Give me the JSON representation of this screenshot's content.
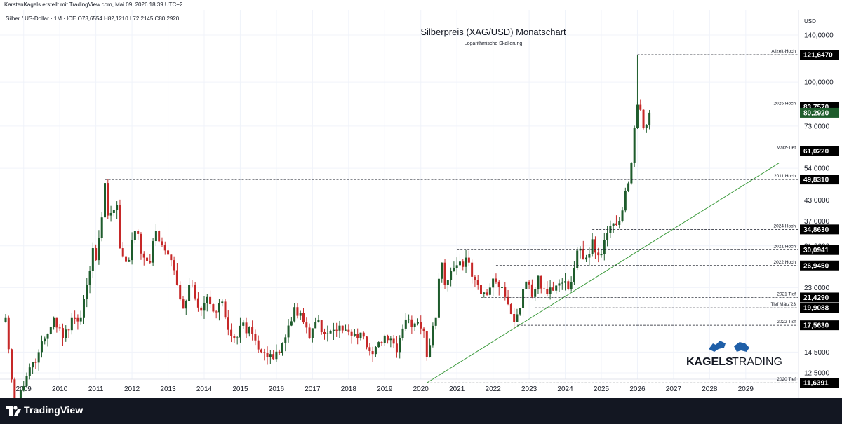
{
  "header": {
    "attribution": "KarstenKagels erstellt mit TradingView.com, Mai 09, 2026 18:39 UTC+2"
  },
  "footer": {
    "brand": "TradingView"
  },
  "chart_data": {
    "type": "candlestick",
    "symbol_line": "Silber / US-Dollar · 1M · ICE  O73,6554  H82,1210  L72,2145  C80,2920",
    "title": "Silberpreis (XAG/USD) Monatschart",
    "subtitle": "Logarithmische Skalierung",
    "y_unit": "USD",
    "y_scale": "log",
    "ylim": [
      10.5,
      155
    ],
    "y_ticks": [
      "140,0000",
      "100,0000",
      "73,0000",
      "54,0000",
      "43,0000",
      "37,0000",
      "31,0000",
      "23,0000",
      "14,5000",
      "12,5000"
    ],
    "y_tick_values": [
      140,
      100,
      73,
      54,
      43,
      37,
      31,
      23,
      14.5,
      12.5
    ],
    "x_ticks": [
      "2009",
      "2010",
      "2011",
      "2012",
      "2013",
      "2014",
      "2015",
      "2016",
      "2017",
      "2018",
      "2019",
      "2020",
      "2021",
      "2022",
      "2023",
      "2024",
      "2025",
      "2026",
      "2027",
      "2028",
      "2029"
    ],
    "x_range": [
      "2008-07",
      "2029-12"
    ],
    "up_color": "#1e5c2c",
    "down_color": "#c62828",
    "last_price_color": "#1e5c2c",
    "levels": [
      {
        "label": "Allzeit-Hoch",
        "value": 121.647,
        "text": "121,6470",
        "start": "2026-01"
      },
      {
        "label": "2025 Hoch",
        "value": 83.757,
        "text": "83,7570",
        "start": "2026-03"
      },
      {
        "label": "März-Tief",
        "value": 61.022,
        "text": "61,0220",
        "start": "2026-03"
      },
      {
        "label": "2011 Hoch",
        "value": 49.831,
        "text": "49,8310",
        "start": "2011-04"
      },
      {
        "label": "2024 Hoch",
        "value": 34.863,
        "text": "34,8630",
        "start": "2024-10"
      },
      {
        "label": "2021 Hoch",
        "value": 30.0941,
        "text": "30,0941",
        "start": "2021-01"
      },
      {
        "label": "2022 Hoch",
        "value": 26.945,
        "text": "26,9450",
        "start": "2022-02"
      },
      {
        "label": "2021 Tief",
        "value": 21.429,
        "text": "21,4290",
        "start": "2021-09"
      },
      {
        "label": "Tief März'23",
        "value": 19.9088,
        "text": "19,9088",
        "start": "2023-03"
      },
      {
        "label": "2022 Tief",
        "value": 17.563,
        "text": "17,5630",
        "start": "2022-09"
      },
      {
        "label": "2020 Tief",
        "value": 11.6391,
        "text": "11,6391",
        "start": "2020-03"
      }
    ],
    "last_price": {
      "value": 80.292,
      "text": "80,2920"
    },
    "trendline": {
      "color": "#3d9b3d",
      "from": {
        "t": "2020-03",
        "v": 11.6391
      },
      "to": {
        "t": "2029-12",
        "v": 56
      }
    },
    "anchors": [
      [
        "2008-07",
        18.5
      ],
      [
        "2008-10",
        9.5
      ],
      [
        "2008-12",
        11.0
      ],
      [
        "2009-03",
        13.0
      ],
      [
        "2009-06",
        14.5
      ],
      [
        "2009-09",
        16.5
      ],
      [
        "2009-11",
        18.5
      ],
      [
        "2010-02",
        16.0
      ],
      [
        "2010-05",
        18.5
      ],
      [
        "2010-08",
        18.5
      ],
      [
        "2010-10",
        23.5
      ],
      [
        "2010-12",
        30.5
      ],
      [
        "2011-01",
        28.0
      ],
      [
        "2011-03",
        38.0
      ],
      [
        "2011-04",
        48.6
      ],
      [
        "2011-05",
        38.5
      ],
      [
        "2011-07",
        40.0
      ],
      [
        "2011-08",
        41.5
      ],
      [
        "2011-09",
        30.5
      ],
      [
        "2011-12",
        28.0
      ],
      [
        "2012-02",
        34.5
      ],
      [
        "2012-05",
        28.5
      ],
      [
        "2012-07",
        27.5
      ],
      [
        "2012-09",
        34.5
      ],
      [
        "2012-12",
        30.0
      ],
      [
        "2013-02",
        28.0
      ],
      [
        "2013-04",
        23.5
      ],
      [
        "2013-06",
        19.8
      ],
      [
        "2013-08",
        23.5
      ],
      [
        "2013-12",
        19.5
      ],
      [
        "2014-02",
        21.5
      ],
      [
        "2014-05",
        19.3
      ],
      [
        "2014-07",
        20.8
      ],
      [
        "2014-09",
        17.0
      ],
      [
        "2014-11",
        16.0
      ],
      [
        "2015-01",
        17.5
      ],
      [
        "2015-05",
        16.5
      ],
      [
        "2015-08",
        14.5
      ],
      [
        "2015-12",
        13.8
      ],
      [
        "2016-03",
        15.5
      ],
      [
        "2016-07",
        20.0
      ],
      [
        "2016-09",
        19.2
      ],
      [
        "2016-12",
        16.0
      ],
      [
        "2017-02",
        18.0
      ],
      [
        "2017-05",
        16.5
      ],
      [
        "2017-08",
        17.0
      ],
      [
        "2017-12",
        17.0
      ],
      [
        "2018-03",
        16.5
      ],
      [
        "2018-06",
        16.2
      ],
      [
        "2018-09",
        14.3
      ],
      [
        "2018-12",
        15.5
      ],
      [
        "2019-02",
        15.8
      ],
      [
        "2019-05",
        14.5
      ],
      [
        "2019-08",
        18.3
      ],
      [
        "2019-12",
        18.0
      ],
      [
        "2020-02",
        16.8
      ],
      [
        "2020-03",
        14.0
      ],
      [
        "2020-05",
        17.5
      ],
      [
        "2020-06",
        18.5
      ],
      [
        "2020-07",
        24.5
      ],
      [
        "2020-08",
        27.5
      ],
      [
        "2020-09",
        23.5
      ],
      [
        "2020-12",
        26.5
      ],
      [
        "2021-01",
        27.0
      ],
      [
        "2021-05",
        27.5
      ],
      [
        "2021-09",
        22.0
      ],
      [
        "2021-12",
        23.0
      ],
      [
        "2022-02",
        24.0
      ],
      [
        "2022-05",
        21.5
      ],
      [
        "2022-08",
        18.0
      ],
      [
        "2022-09",
        19.0
      ],
      [
        "2022-12",
        24.0
      ],
      [
        "2023-02",
        21.5
      ],
      [
        "2023-04",
        25.0
      ],
      [
        "2023-06",
        22.8
      ],
      [
        "2023-09",
        22.5
      ],
      [
        "2023-12",
        23.8
      ],
      [
        "2024-02",
        22.8
      ],
      [
        "2024-04",
        26.5
      ],
      [
        "2024-05",
        30.0
      ],
      [
        "2024-08",
        28.5
      ],
      [
        "2024-10",
        32.5
      ],
      [
        "2024-12",
        29.0
      ],
      [
        "2025-03",
        34.0
      ],
      [
        "2025-06",
        36.0
      ],
      [
        "2025-07",
        37.0
      ],
      [
        "2025-09",
        46.0
      ],
      [
        "2025-10",
        48.5
      ],
      [
        "2025-11",
        56.0
      ],
      [
        "2025-12",
        72.0
      ],
      [
        "2026-01",
        85.0
      ],
      [
        "2026-02",
        82.0
      ],
      [
        "2026-03",
        72.0
      ],
      [
        "2026-04",
        73.6
      ],
      [
        "2026-05",
        80.3
      ]
    ]
  },
  "branding": {
    "logo_text_1": "KAGELS",
    "logo_text_2": "TRADING"
  }
}
